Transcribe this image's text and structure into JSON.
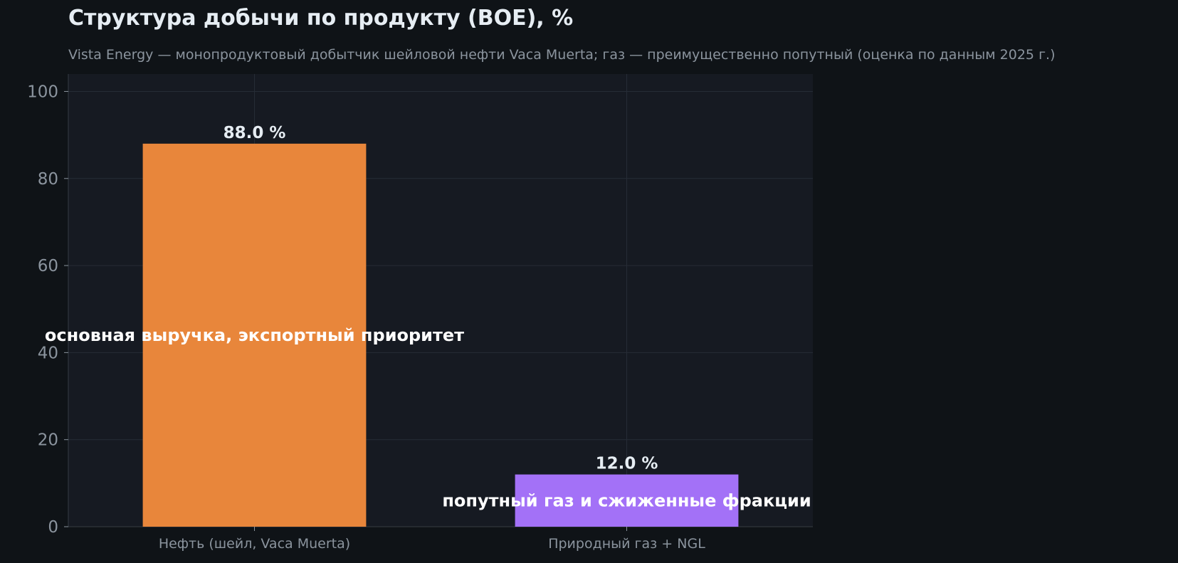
{
  "chart_data": {
    "type": "bar",
    "title": "Структура добычи по продукту (BOE), %",
    "subtitle": "Vista Energy — монопродуктовый добытчик шейловой нефти Vaca Muerta; газ — преимущественно попутный (оценка по данным 2025 г.)",
    "xlabel": "",
    "ylabel": "",
    "categories": [
      "Нефть (шейл, Vaca Muerta)",
      "Природный газ + NGL"
    ],
    "values": [
      88.0,
      12.0
    ],
    "value_labels": [
      "88.0 %",
      "12.0 %"
    ],
    "annotations": [
      "основная выручка, экспортный приоритет",
      "попутный газ и сжиженные фракции"
    ],
    "bar_colors": [
      "#e8863b",
      "#a371f7"
    ],
    "ylim": [
      0,
      104
    ],
    "yticks": [
      0,
      20,
      40,
      60,
      80,
      100
    ],
    "grid": true,
    "legend": "none"
  },
  "colors": {
    "background": "#0f1317",
    "plot_background": "#161a22",
    "grid": "#262c36",
    "axis": "#30363d",
    "tick_text": "#8b949e",
    "title_text": "#e6edf3",
    "annotation_text": "#ffffff"
  }
}
